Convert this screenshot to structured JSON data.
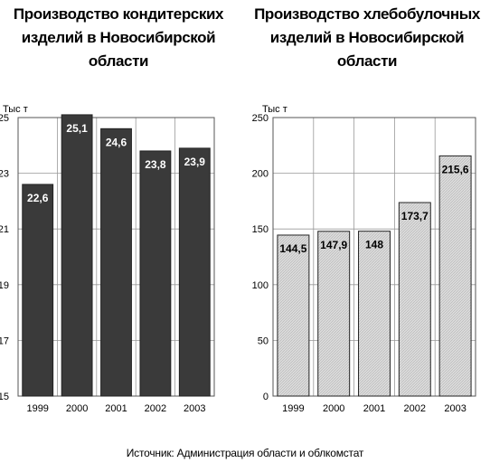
{
  "source": "Источник: Администрация области и облкомстат",
  "chart_data": [
    {
      "type": "bar",
      "title": "Производство кондитерских изделий в Новосибирской области",
      "ylabel": "Тыс т",
      "categories": [
        "1999",
        "2000",
        "2001",
        "2002",
        "2003"
      ],
      "values": [
        22.6,
        25.1,
        24.6,
        23.8,
        23.9
      ],
      "value_labels": [
        "22,6",
        "25,1",
        "24,6",
        "23,8",
        "23,9"
      ],
      "ylim": [
        15,
        25
      ],
      "yticks": [
        15,
        17,
        19,
        21,
        23,
        25
      ],
      "grid": true,
      "bar_color": "#3a3a3a",
      "label_color": "#ffffff"
    },
    {
      "type": "bar",
      "title": "Производство хлебобулочных изделий в Новосибирской области",
      "ylabel": "Тыс т",
      "categories": [
        "1999",
        "2000",
        "2001",
        "2002",
        "2003"
      ],
      "values": [
        144.5,
        147.9,
        148,
        173.7,
        215.6
      ],
      "value_labels": [
        "144,5",
        "147,9",
        "148",
        "173,7",
        "215,6"
      ],
      "ylim": [
        0,
        250
      ],
      "yticks": [
        0,
        50,
        100,
        150,
        200,
        250
      ],
      "grid": true,
      "bar_color": "#d9d9d9",
      "label_color": "#000000"
    }
  ]
}
